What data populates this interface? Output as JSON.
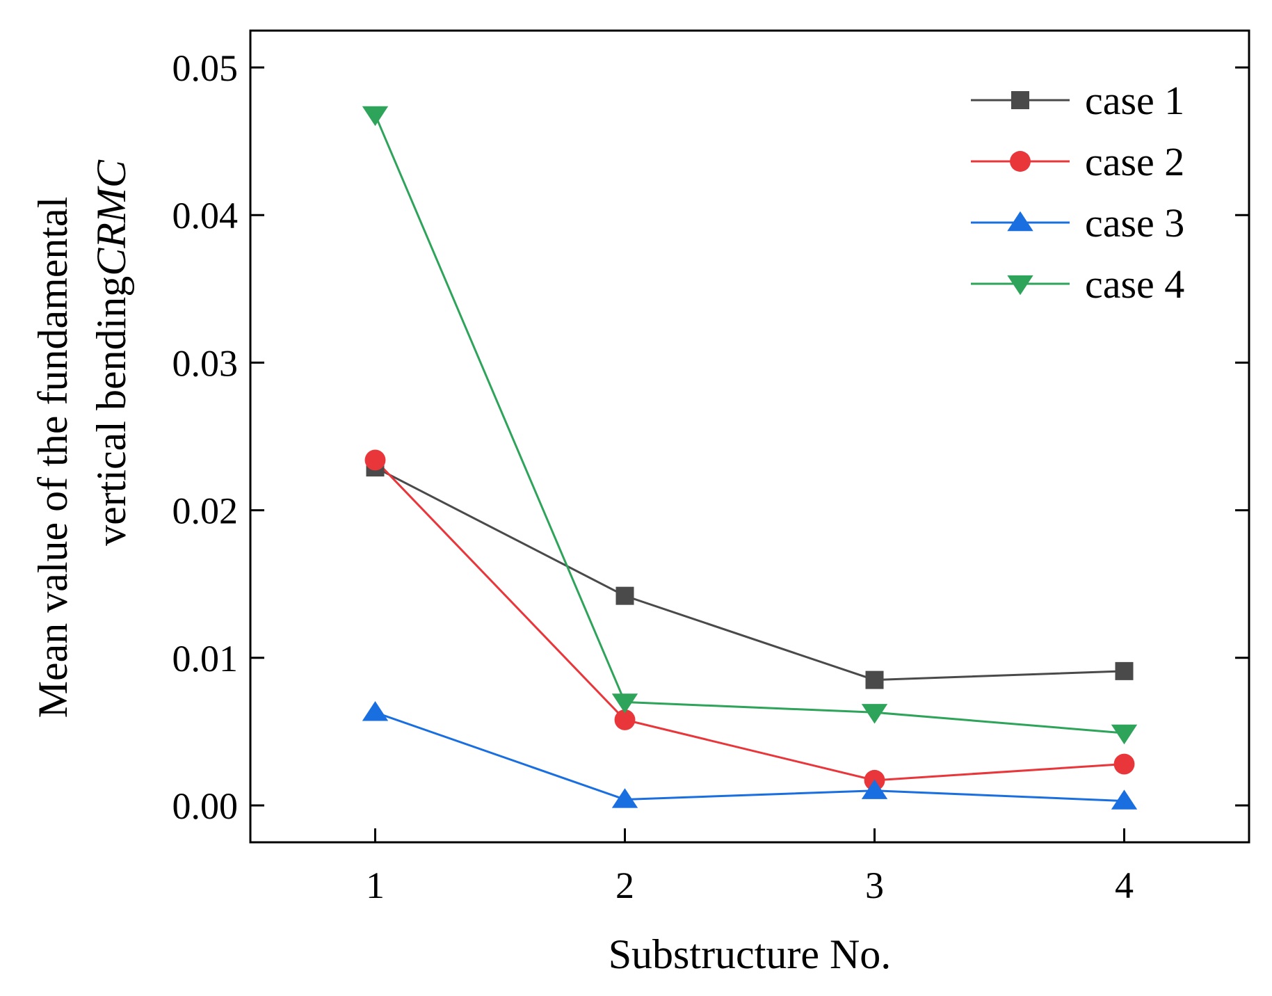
{
  "chart_data": {
    "type": "line",
    "title": "",
    "xlabel": "Substructure No.",
    "ylabel_line1": "Mean value of the fundamental",
    "ylabel_line2": "vertical bending",
    "ylabel_italic": "CRMC",
    "categories": [
      1,
      2,
      3,
      4
    ],
    "x_tick_labels": [
      "1",
      "2",
      "3",
      "4"
    ],
    "xlim": [
      0.5,
      4.5
    ],
    "ylim": [
      -0.0025,
      0.0525
    ],
    "y_ticks": [
      0.0,
      0.01,
      0.02,
      0.03,
      0.04,
      0.05
    ],
    "y_tick_labels": [
      "0.00",
      "0.01",
      "0.02",
      "0.03",
      "0.04",
      "0.05"
    ],
    "grid": false,
    "legend_position": "top-right",
    "series": [
      {
        "name": "case 1",
        "marker": "square",
        "color": "#4a4a4a",
        "values": [
          0.0229,
          0.0142,
          0.0085,
          0.0091
        ]
      },
      {
        "name": "case 2",
        "marker": "circle",
        "color": "#e8363a",
        "values": [
          0.0234,
          0.0058,
          0.0017,
          0.0028
        ]
      },
      {
        "name": "case 3",
        "marker": "triangle-up",
        "color": "#1a6fe0",
        "values": [
          0.0063,
          0.0004,
          0.001,
          0.0003
        ]
      },
      {
        "name": "case 4",
        "marker": "triangle-down",
        "color": "#2ea35a",
        "values": [
          0.0468,
          0.007,
          0.0063,
          0.0049
        ]
      }
    ]
  }
}
